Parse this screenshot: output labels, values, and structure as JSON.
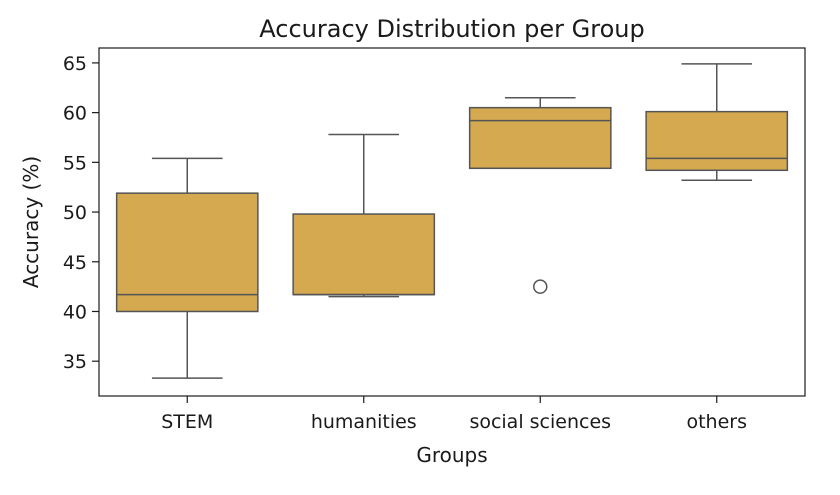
{
  "chart_data": {
    "type": "box",
    "title": "Accuracy Distribution per Group",
    "xlabel": "Groups",
    "ylabel": "Accuracy (%)",
    "ylim": [
      31.5,
      66.5
    ],
    "yticks": [
      35,
      40,
      45,
      50,
      55,
      60,
      65
    ],
    "categories": [
      "STEM",
      "humanities",
      "social sciences",
      "others"
    ],
    "boxes": [
      {
        "category": "STEM",
        "whisker_low": 33.3,
        "q1": 40.0,
        "median": 41.7,
        "q3": 51.9,
        "whisker_high": 55.4,
        "outliers": []
      },
      {
        "category": "humanities",
        "whisker_low": 41.5,
        "q1": 41.7,
        "median": 41.7,
        "q3": 49.8,
        "whisker_high": 57.8,
        "outliers": []
      },
      {
        "category": "social sciences",
        "whisker_low": 54.4,
        "q1": 54.4,
        "median": 59.2,
        "q3": 60.5,
        "whisker_high": 61.5,
        "outliers": [
          42.5
        ]
      },
      {
        "category": "others",
        "whisker_low": 53.2,
        "q1": 54.2,
        "median": 55.4,
        "q3": 60.1,
        "whisker_high": 64.9,
        "outliers": []
      }
    ],
    "box_color": "#d4a94f",
    "line_color": "#555555",
    "grid": false,
    "legend": "none"
  }
}
